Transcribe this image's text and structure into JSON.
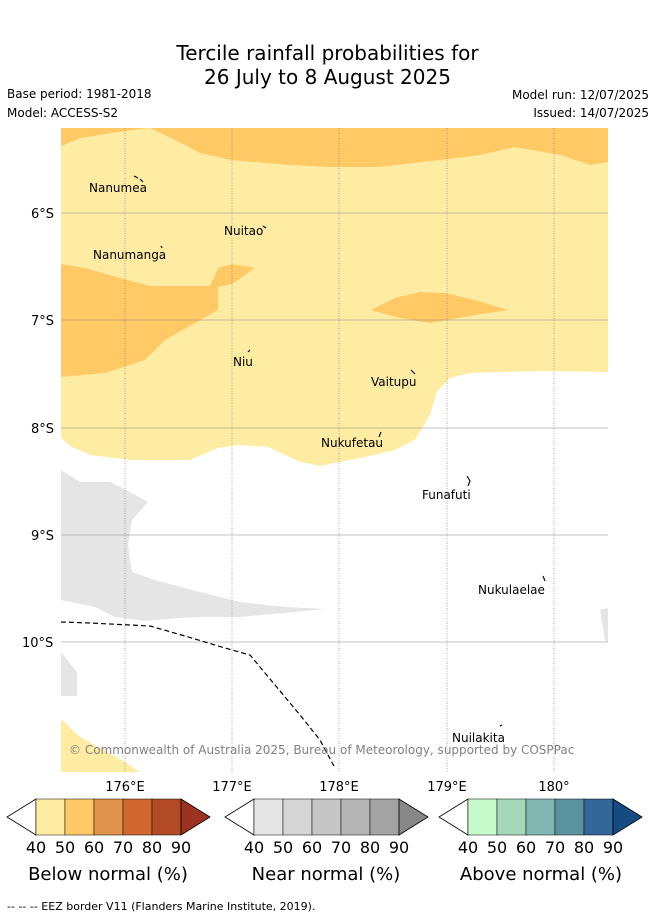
{
  "header": {
    "title_line1": "Tercile rainfall probabilities for",
    "title_line2": "26 July to 8 August 2025",
    "base_period": "Base period: 1981-2018",
    "model": "Model: ACCESS-S2",
    "model_run": "Model run: 12/07/2025",
    "issued": "Issued: 14/07/2025"
  },
  "map": {
    "lat_labels": [
      "6°S",
      "7°S",
      "8°S",
      "9°S",
      "10°S"
    ],
    "lon_labels": [
      "176°E",
      "177°E",
      "178°E",
      "179°E",
      "180°"
    ],
    "places": [
      "Nanumea",
      "Nuitao",
      "Nanumanga",
      "Niu",
      "Vaitupu",
      "Nukufetau",
      "Funafuti",
      "Nukulaelae",
      "Nuilakita"
    ],
    "copyright": "© Commonwealth of Australia 2025, Bureau of Meteorology, supported by COSPPac",
    "colors": {
      "below_40": "#FFECA3",
      "below_50": "#FFC965",
      "near_40": "#E5E5E5"
    }
  },
  "colorbars": [
    {
      "title": "Below normal (%)",
      "ticks": [
        "40",
        "50",
        "60",
        "70",
        "80",
        "90"
      ],
      "colors": [
        "#FFECA3",
        "#FFC965",
        "#E0934A",
        "#D1672E",
        "#B34C26",
        "#9C3220"
      ]
    },
    {
      "title": "Near normal (%)",
      "ticks": [
        "40",
        "50",
        "60",
        "70",
        "80",
        "90"
      ],
      "colors": [
        "#E5E5E5",
        "#D6D6D6",
        "#C6C6C6",
        "#B4B4B4",
        "#A3A3A3",
        "#878787"
      ]
    },
    {
      "title": "Above normal (%)",
      "ticks": [
        "40",
        "50",
        "60",
        "70",
        "80",
        "90"
      ],
      "colors": [
        "#C8FBCB",
        "#A3D8BB",
        "#82B7B1",
        "#5B92A0",
        "#336699",
        "#154A82"
      ]
    }
  ],
  "footer": {
    "eez_legend": "--  --  -- EEZ border V11 (Flanders Marine Institute, 2019)."
  }
}
